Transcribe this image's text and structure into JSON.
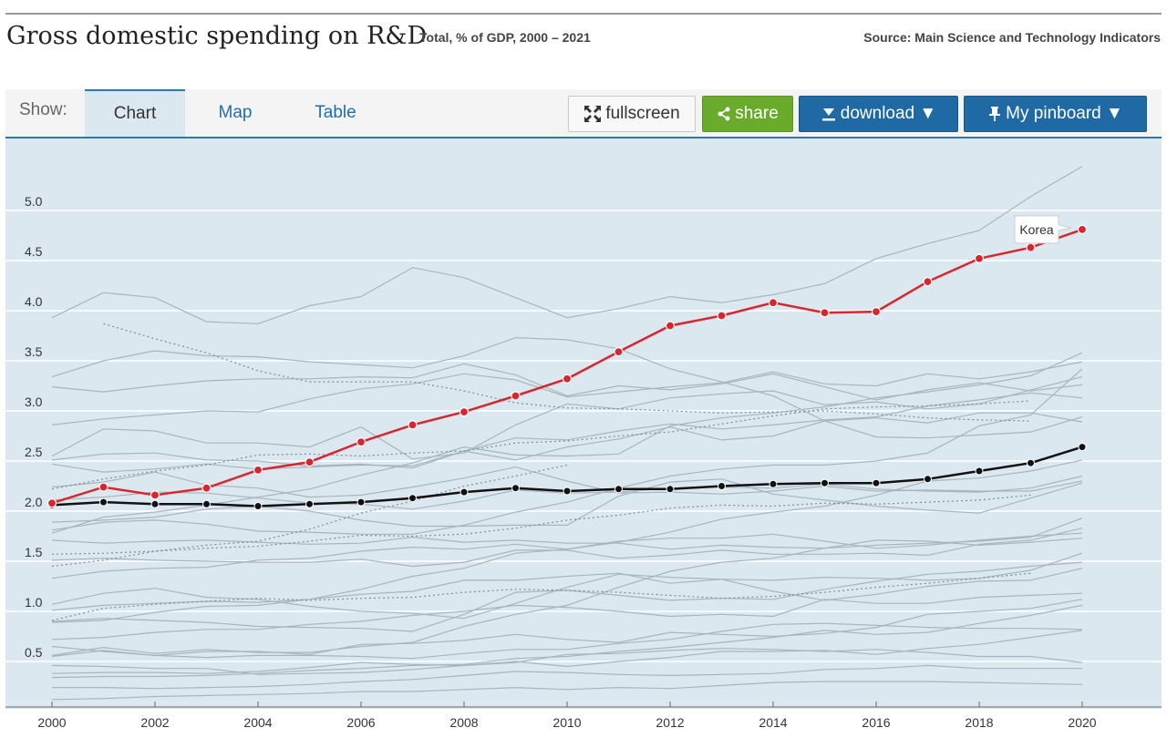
{
  "header": {
    "title": "Gross domestic spending on R&D",
    "subtitle": "Total, % of GDP, 2000 – 2021",
    "source": "Source: Main Science and Technology Indicators"
  },
  "toolbar": {
    "show_label": "Show:",
    "tabs": [
      {
        "label": "Chart",
        "active": true
      },
      {
        "label": "Map",
        "active": false
      },
      {
        "label": "Table",
        "active": false
      }
    ],
    "fullscreen_label": "fullscreen",
    "share_label": "share",
    "download_label": "download ▼",
    "pinboard_label": "My pinboard ▼"
  },
  "colors": {
    "highlight": "#d9262e",
    "average": "#111111",
    "background_series": "#a9b5bd",
    "plot_bg": "#dce8f0",
    "share_btn": "#6aab2b",
    "primary_btn": "#1f6aa5"
  },
  "chart_data": {
    "type": "line",
    "x": [
      2000,
      2001,
      2002,
      2003,
      2004,
      2005,
      2006,
      2007,
      2008,
      2009,
      2010,
      2011,
      2012,
      2013,
      2014,
      2015,
      2016,
      2017,
      2018,
      2019,
      2020
    ],
    "xticks": [
      "2000",
      "2002",
      "2004",
      "2006",
      "2008",
      "2010",
      "2012",
      "2014",
      "2016",
      "2018",
      "2020"
    ],
    "yticks": [
      "0.5",
      "1.0",
      "1.5",
      "2.0",
      "2.5",
      "3.0",
      "3.5",
      "4.0",
      "4.5",
      "5.0"
    ],
    "xlim": [
      2000,
      2021.5
    ],
    "ylim": [
      0.1,
      5.6
    ],
    "grid": "horizontal",
    "highlight_series": {
      "name": "Korea",
      "values": [
        2.08,
        2.24,
        2.16,
        2.23,
        2.41,
        2.49,
        2.69,
        2.86,
        2.99,
        3.15,
        3.32,
        3.59,
        3.85,
        3.95,
        4.08,
        3.98,
        3.99,
        4.29,
        4.52,
        4.63,
        4.81
      ]
    },
    "average_series": {
      "values": [
        2.06,
        2.09,
        2.07,
        2.07,
        2.05,
        2.07,
        2.09,
        2.13,
        2.19,
        2.23,
        2.2,
        2.22,
        2.22,
        2.25,
        2.27,
        2.28,
        2.28,
        2.32,
        2.4,
        2.48,
        2.64
      ]
    },
    "other_series": [
      {
        "values": [
          3.93,
          4.18,
          4.13,
          3.89,
          3.87,
          4.05,
          4.14,
          4.43,
          4.33,
          4.13,
          3.93,
          4.02,
          4.14,
          4.08,
          4.16,
          4.27,
          4.52,
          4.67,
          4.8,
          5.14,
          5.44
        ]
      },
      {
        "values": [
          3.24,
          3.19,
          3.25,
          3.3,
          3.32,
          3.32,
          3.34,
          3.33,
          3.47,
          3.36,
          3.15,
          3.25,
          3.21,
          3.27,
          3.37,
          3.24,
          3.11,
          3.21,
          3.28,
          3.2,
          3.26
        ]
      },
      {
        "values": [
          3.34,
          3.5,
          3.6,
          3.55,
          3.54,
          3.49,
          3.46,
          3.43,
          3.55,
          3.73,
          3.71,
          3.62,
          3.42,
          3.29,
          3.15,
          2.9,
          2.74,
          2.73,
          2.76,
          2.79,
          2.94
        ]
      },
      {
        "values": [
          2.86,
          2.92,
          2.96,
          3.0,
          2.99,
          3.12,
          3.22,
          3.27,
          3.37,
          3.31,
          3.14,
          3.19,
          3.24,
          3.28,
          3.39,
          3.27,
          3.25,
          3.37,
          3.32,
          3.39,
          3.49
        ]
      },
      {
        "values": [
          2.55,
          2.82,
          2.8,
          2.68,
          2.68,
          2.64,
          2.84,
          2.52,
          2.58,
          2.86,
          3.07,
          3.02,
          3.13,
          3.17,
          3.2,
          3.06,
          3.09,
          3.02,
          3.07,
          3.21,
          3.34
        ]
      },
      {
        "values": [
          2.47,
          2.39,
          2.42,
          2.47,
          2.42,
          2.44,
          2.46,
          2.45,
          2.6,
          2.73,
          2.71,
          2.8,
          2.87,
          2.82,
          2.86,
          2.91,
          2.94,
          3.05,
          3.11,
          3.18,
          3.13
        ]
      },
      {
        "values": [
          2.51,
          2.57,
          2.58,
          2.51,
          2.5,
          2.45,
          2.47,
          2.43,
          2.6,
          2.51,
          2.64,
          2.72,
          2.84,
          2.71,
          2.75,
          2.9,
          2.93,
          2.88,
          2.98,
          2.98,
          2.89
        ]
      },
      {
        "values": [
          1.78,
          1.94,
          1.99,
          2.06,
          2.14,
          2.22,
          2.36,
          2.48,
          2.64,
          2.56,
          2.55,
          2.57,
          2.85,
          2.93,
          2.98,
          3.04,
          3.13,
          3.19,
          3.26,
          3.35,
          3.58
        ]
      },
      {
        "values": [
          1.81,
          1.89,
          1.91,
          1.87,
          1.8,
          1.79,
          1.77,
          1.77,
          1.86,
          1.99,
          2.09,
          2.23,
          2.35,
          2.42,
          2.46,
          2.46,
          2.5,
          2.58,
          2.85,
          2.96,
          3.42
        ]
      },
      {
        "values": [
          2.24,
          2.29,
          2.39,
          2.26,
          2.23,
          2.14,
          2.16,
          2.24,
          2.33,
          2.44,
          2.3,
          2.18,
          2.19,
          2.17,
          2.2,
          2.25,
          2.2,
          2.21,
          2.2,
          2.2,
          2.3
        ]
      },
      {
        "values": [
          2.11,
          2.14,
          2.19,
          2.18,
          2.13,
          2.08,
          2.07,
          2.02,
          2.1,
          2.21,
          2.18,
          2.19,
          2.23,
          2.24,
          2.23,
          2.27,
          2.22,
          2.2,
          2.19,
          2.23,
          2.35
        ]
      },
      {
        "values": [
          1.89,
          1.91,
          1.94,
          2.02,
          2.05,
          2.0,
          1.91,
          1.85,
          1.85,
          1.86,
          1.86,
          2.15,
          2.29,
          2.32,
          2.17,
          2.11,
          2.05,
          2.01,
          1.98,
          2.13,
          2.28
        ]
      },
      {
        "values": [
          1.71,
          1.68,
          1.7,
          1.71,
          1.69,
          1.67,
          1.68,
          1.74,
          1.69,
          1.71,
          1.68,
          1.68,
          1.62,
          1.66,
          1.64,
          1.63,
          1.66,
          1.68,
          1.7,
          1.74,
          1.93
        ]
      },
      {
        "values": [
          1.51,
          1.53,
          1.51,
          1.5,
          1.49,
          1.49,
          1.52,
          1.45,
          1.49,
          1.61,
          1.61,
          1.53,
          1.56,
          1.61,
          1.57,
          1.57,
          1.58,
          1.56,
          1.67,
          1.71,
          1.83
        ]
      },
      {
        "values": [
          1.33,
          1.4,
          1.43,
          1.44,
          1.51,
          1.53,
          1.6,
          1.64,
          1.62,
          1.67,
          1.62,
          1.7,
          1.73,
          1.73,
          1.77,
          1.7,
          1.63,
          1.66,
          1.71,
          1.75,
          1.78
        ]
      },
      {
        "values": [
          1.01,
          1.06,
          1.08,
          1.1,
          1.09,
          1.12,
          1.17,
          1.2,
          1.31,
          1.31,
          1.35,
          1.38,
          1.28,
          1.32,
          1.31,
          1.34,
          1.33,
          1.31,
          1.33,
          1.41,
          1.58
        ]
      },
      {
        "values": [
          0.89,
          0.91,
          0.99,
          1.05,
          1.06,
          1.12,
          1.22,
          1.35,
          1.43,
          1.58,
          1.62,
          1.69,
          1.79,
          1.92,
          1.99,
          2.05,
          2.16,
          2.3,
          2.33,
          2.4,
          2.51
        ]
      },
      {
        "values": [
          1.07,
          1.18,
          1.23,
          1.14,
          1.12,
          1.05,
          1.0,
          0.98,
          0.93,
          1.08,
          1.24,
          1.37,
          1.34,
          1.32,
          1.2,
          1.11,
          1.17,
          1.25,
          1.3,
          1.31,
          1.43
        ]
      },
      {
        "values": [
          0.9,
          0.93,
          0.91,
          0.89,
          0.85,
          0.84,
          0.83,
          0.8,
          0.97,
          1.19,
          1.21,
          1.16,
          1.11,
          1.13,
          1.12,
          1.22,
          1.3,
          1.37,
          1.4,
          1.45,
          1.49
        ]
      },
      {
        "values": [
          0.56,
          0.64,
          0.58,
          0.62,
          0.59,
          0.59,
          0.65,
          0.69,
          0.85,
          0.97,
          1.06,
          1.24,
          1.4,
          1.49,
          1.53,
          1.63,
          1.71,
          1.7,
          1.66,
          1.69,
          1.73
        ]
      },
      {
        "values": [
          0.72,
          0.74,
          0.79,
          0.82,
          0.82,
          0.87,
          0.9,
          0.96,
          1.0,
          1.06,
          1.04,
          1.0,
          0.95,
          0.97,
          0.95,
          1.12,
          1.08,
          1.08,
          1.14,
          1.16,
          1.18
        ]
      },
      {
        "values": [
          0.55,
          0.61,
          0.56,
          0.6,
          0.6,
          0.57,
          0.67,
          0.68,
          0.71,
          0.77,
          0.72,
          0.69,
          0.79,
          0.77,
          0.75,
          0.78,
          0.84,
          0.97,
          1.0,
          1.03,
          1.12
        ]
      },
      {
        "values": [
          0.46,
          0.45,
          0.43,
          0.43,
          0.37,
          0.38,
          0.39,
          0.42,
          0.46,
          0.49,
          0.57,
          0.58,
          0.61,
          0.63,
          0.62,
          0.6,
          0.62,
          0.59,
          0.55,
          0.55,
          0.49
        ]
      },
      {
        "values": [
          0.38,
          0.39,
          0.39,
          0.38,
          0.4,
          0.44,
          0.49,
          0.47,
          0.46,
          0.5,
          0.45,
          0.5,
          0.54,
          0.6,
          0.6,
          0.61,
          0.57,
          0.63,
          0.67,
          0.74,
          0.81
        ]
      },
      {
        "values": [
          0.34,
          0.35,
          0.35,
          0.36,
          0.38,
          0.41,
          0.43,
          0.46,
          0.47,
          0.53,
          0.55,
          0.6,
          0.64,
          0.69,
          0.74,
          0.81,
          0.77,
          0.79,
          0.88,
          0.96,
          1.06
        ]
      },
      {
        "values": [
          0.65,
          0.6,
          0.56,
          0.54,
          0.56,
          0.56,
          0.55,
          0.53,
          0.58,
          0.62,
          0.62,
          0.68,
          0.72,
          0.8,
          0.87,
          0.88,
          0.86,
          0.84,
          0.83,
          0.83,
          0.82
        ]
      },
      {
        "values": [
          0.12,
          0.13,
          0.15,
          0.16,
          0.17,
          0.18,
          0.2,
          0.2,
          0.22,
          0.24,
          0.22,
          0.24,
          0.23,
          0.26,
          0.29,
          0.3,
          0.3,
          0.3,
          0.29,
          0.28,
          0.27
        ]
      },
      {
        "values": [
          0.24,
          0.24,
          0.23,
          0.24,
          0.25,
          0.27,
          0.3,
          0.32,
          0.36,
          0.4,
          0.39,
          0.37,
          0.36,
          0.37,
          0.38,
          0.42,
          0.43,
          0.46,
          0.43,
          0.43,
          0.43
        ]
      }
    ],
    "dotted_series": [
      {
        "values": [
          2.22,
          2.32,
          2.4,
          2.46,
          2.56,
          2.57,
          2.55,
          2.58,
          2.6,
          2.68,
          2.7,
          2.75,
          2.79,
          2.87,
          2.95,
          3.02,
          3.04,
          3.05,
          3.07,
          3.1
        ]
      },
      {
        "values": [
          1.45,
          1.51,
          1.6,
          1.66,
          1.7,
          1.82,
          1.98,
          2.1,
          2.25,
          2.35,
          2.46
        ]
      },
      {
        "values": [
          1.57,
          1.58,
          1.6,
          1.63,
          1.65,
          1.7,
          1.76,
          1.75,
          1.77,
          1.83,
          1.91,
          1.96,
          2.03,
          2.06,
          2.05,
          2.08,
          2.07,
          2.09,
          2.11,
          2.16
        ]
      },
      {
        "values": [
          0.91,
          1.03,
          1.07,
          1.1,
          1.13,
          1.11,
          1.13,
          1.14,
          1.19,
          1.22,
          1.21,
          1.19,
          1.16,
          1.13,
          1.15,
          1.19,
          1.24,
          1.28,
          1.33,
          1.38
        ]
      },
      {
        "values": [
          null,
          3.87,
          3.72,
          3.58,
          3.4,
          3.29,
          3.29,
          3.29,
          3.2,
          3.08,
          3.03,
          3.02,
          3.0,
          2.98,
          2.99,
          3.0,
          2.97,
          2.93,
          2.91,
          2.9
        ]
      }
    ]
  }
}
